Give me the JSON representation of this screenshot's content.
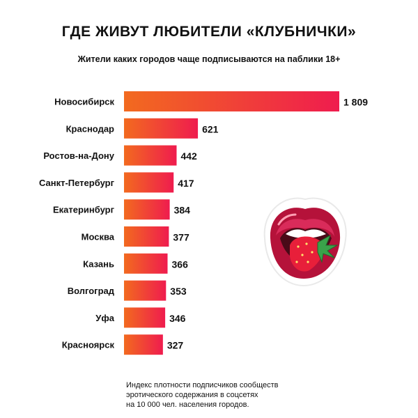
{
  "chart_data": {
    "type": "bar",
    "orientation": "horizontal",
    "title": "ГДЕ ЖИВУТ ЛЮБИТЕЛИ «КЛУБНИЧКИ»",
    "subtitle": "Жители каких городов чаще подписываются на паблики 18+",
    "categories": [
      "Новосибирск",
      "Краснодар",
      "Ростов-на-Дону",
      "Санкт-Петербург",
      "Екатеринбург",
      "Москва",
      "Казань",
      "Волгоград",
      "Уфа",
      "Красноярск"
    ],
    "values": [
      1809,
      621,
      442,
      417,
      384,
      377,
      366,
      353,
      346,
      327
    ],
    "value_labels": [
      "1 809",
      "621",
      "442",
      "417",
      "384",
      "377",
      "366",
      "353",
      "346",
      "327"
    ],
    "xlim": [
      0,
      1809
    ],
    "grid": false,
    "colors": {
      "bar_start": "#f26a1f",
      "bar_end": "#ef1c4e"
    }
  },
  "footnote": [
    "Индекс плотности подписчиков сообществ",
    "эротического содержания в соцсетях",
    "на 10 000 чел. населения городов."
  ],
  "illustration": {
    "icon": "lips-strawberry-icon"
  }
}
